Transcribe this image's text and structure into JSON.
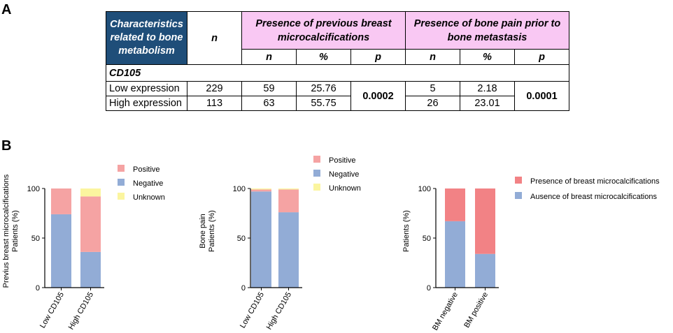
{
  "panel_labels": {
    "a": "A",
    "b": "B"
  },
  "table": {
    "header": {
      "characteristics": "Characteristics related to bone metabolism",
      "n": "n",
      "group1": "Presence  of previous breast microcalcifications",
      "group2": "Presence of bone pain prior to bone metastasis",
      "sub": [
        "n",
        "%",
        "p",
        "n",
        "%",
        "p"
      ]
    },
    "section": "CD105",
    "rows": [
      {
        "label": "Low expression",
        "n": "229",
        "g1_n": "59",
        "g1_pct": "25.76",
        "g2_n": "5",
        "g2_pct": "2.18"
      },
      {
        "label": "High expression",
        "n": "113",
        "g1_n": "63",
        "g1_pct": "55.75",
        "g2_n": "26",
        "g2_pct": "23.01"
      }
    ],
    "p_values": {
      "g1": "0.0002",
      "g2": "0.0001"
    }
  },
  "colors": {
    "positive": "#f5a3a3",
    "negative": "#92acd6",
    "unknown": "#fbf59f",
    "presence": "#f28285",
    "absence": "#92acd6",
    "header_dark": "#1f4e79",
    "header_pink": "#f9c8f3"
  },
  "chart_data": [
    {
      "type": "bar",
      "stacked": true,
      "ylabel": "Previus breast microcalcifications Patients (%)",
      "ylabel_lines": [
        "Previus breast microcalcifications",
        "Patients (%)"
      ],
      "categories": [
        "Low CD105",
        "High CD105"
      ],
      "ylim": [
        0,
        100
      ],
      "yticks": [
        "0",
        "50",
        "100"
      ],
      "legend_position": "top-right",
      "series": [
        {
          "name": "Negative",
          "values": [
            74,
            36
          ]
        },
        {
          "name": "Positive",
          "values": [
            26,
            56
          ]
        },
        {
          "name": "Unknown",
          "values": [
            0,
            8
          ]
        }
      ],
      "legend": [
        "Positive",
        "Negative",
        "Unknown"
      ]
    },
    {
      "type": "bar",
      "stacked": true,
      "ylabel": "Bone pain Patients (%)",
      "ylabel_lines": [
        "Bone pain",
        "Patients (%)"
      ],
      "categories": [
        "Low CD105",
        "High CD105"
      ],
      "ylim": [
        0,
        100
      ],
      "yticks": [
        "0",
        "50",
        "100"
      ],
      "legend_position": "top-right",
      "series": [
        {
          "name": "Negative",
          "values": [
            97,
            76
          ]
        },
        {
          "name": "Positive",
          "values": [
            2,
            23
          ]
        },
        {
          "name": "Unknown",
          "values": [
            1,
            1
          ]
        }
      ],
      "legend": [
        "Positive",
        "Negative",
        "Unknown"
      ]
    },
    {
      "type": "bar",
      "stacked": true,
      "ylabel": "Patients (%)",
      "ylabel_lines": [
        "Patients (%)"
      ],
      "categories": [
        "BM negative",
        "BM positive"
      ],
      "ylim": [
        0,
        100
      ],
      "yticks": [
        "0",
        "50",
        "100"
      ],
      "legend_position": "top-right",
      "series": [
        {
          "name": "Ausence of breast microcalcifications",
          "values": [
            67,
            34
          ]
        },
        {
          "name": "Presence of breast microcalcifications",
          "values": [
            33,
            66
          ]
        }
      ],
      "legend": [
        "Presence of breast microcalcifications",
        "Ausence of breast microcalcifications"
      ]
    }
  ]
}
